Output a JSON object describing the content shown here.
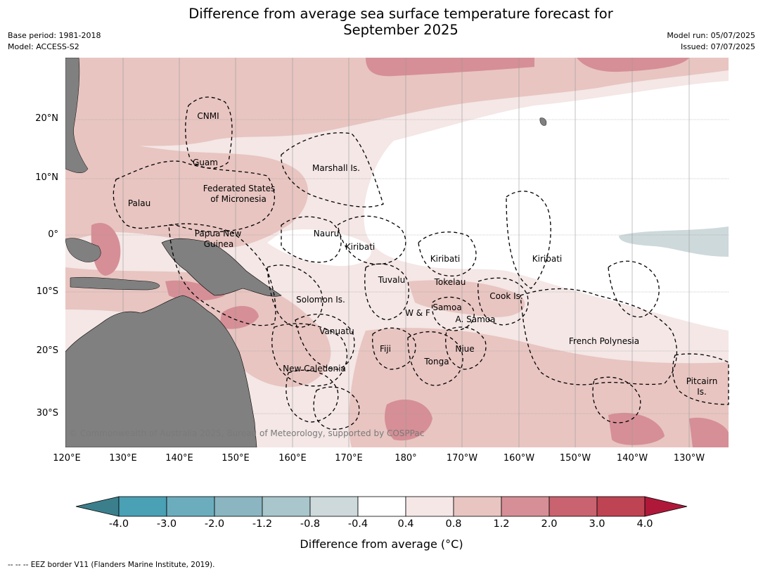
{
  "title": {
    "line1": "Difference from average sea surface temperature forecast for",
    "line2": "September 2025"
  },
  "info_left": {
    "base_period": "Base period: 1981-2018",
    "model": "Model: ACCESS-S2"
  },
  "info_right": {
    "model_run": "Model run: 05/07/2025",
    "issued": "Issued: 07/07/2025"
  },
  "colors": {
    "land": "#808080",
    "bins": [
      "#3c7f8c",
      "#4aa0b4",
      "#6cadbd",
      "#8ab5c1",
      "#a8c6cb",
      "#cdd9db",
      "#ffffff",
      "#f4e7e6",
      "#e8c5c1",
      "#d68f96",
      "#c9636f",
      "#be4353",
      "#b0183a"
    ]
  },
  "lon_ticks": [
    "120°E",
    "130°E",
    "140°E",
    "150°E",
    "160°E",
    "170°E",
    "180°",
    "170°W",
    "160°W",
    "150°W",
    "140°W",
    "130°W"
  ],
  "lat_ticks": [
    "20°N",
    "10°N",
    "0°",
    "10°S",
    "20°S",
    "30°S"
  ],
  "regions": [
    "CNMI",
    "Guam",
    "Marshall Is.",
    "Federated States",
    "of Micronesia",
    "Palau",
    "Nauru",
    "Papua New",
    "Guinea",
    "Kiribati",
    "Kiribati",
    "Kiribati",
    "Tuvalu",
    "Tokelau",
    "Cook Is.",
    "Solomon Is.",
    "Samoa",
    "W & F",
    "A. Samoa",
    "Vanuatu",
    "Fiji",
    "Niue",
    "Tonga",
    "French Polynesia",
    "New Caledonia",
    "Pitcairn",
    "Is."
  ],
  "copyright": "© Commonwealth of Australia 2025, Bureau of Meteorology, supported by COSPPac",
  "colorbar": {
    "labels": [
      "-4.0",
      "-3.0",
      "-2.0",
      "-1.2",
      "-0.8",
      "-0.4",
      "0.4",
      "0.8",
      "1.2",
      "2.0",
      "3.0",
      "4.0"
    ],
    "title": "Difference from average (°C)"
  },
  "footer": "--  --  -- EEZ border V11 (Flanders Marine Institute, 2019)."
}
